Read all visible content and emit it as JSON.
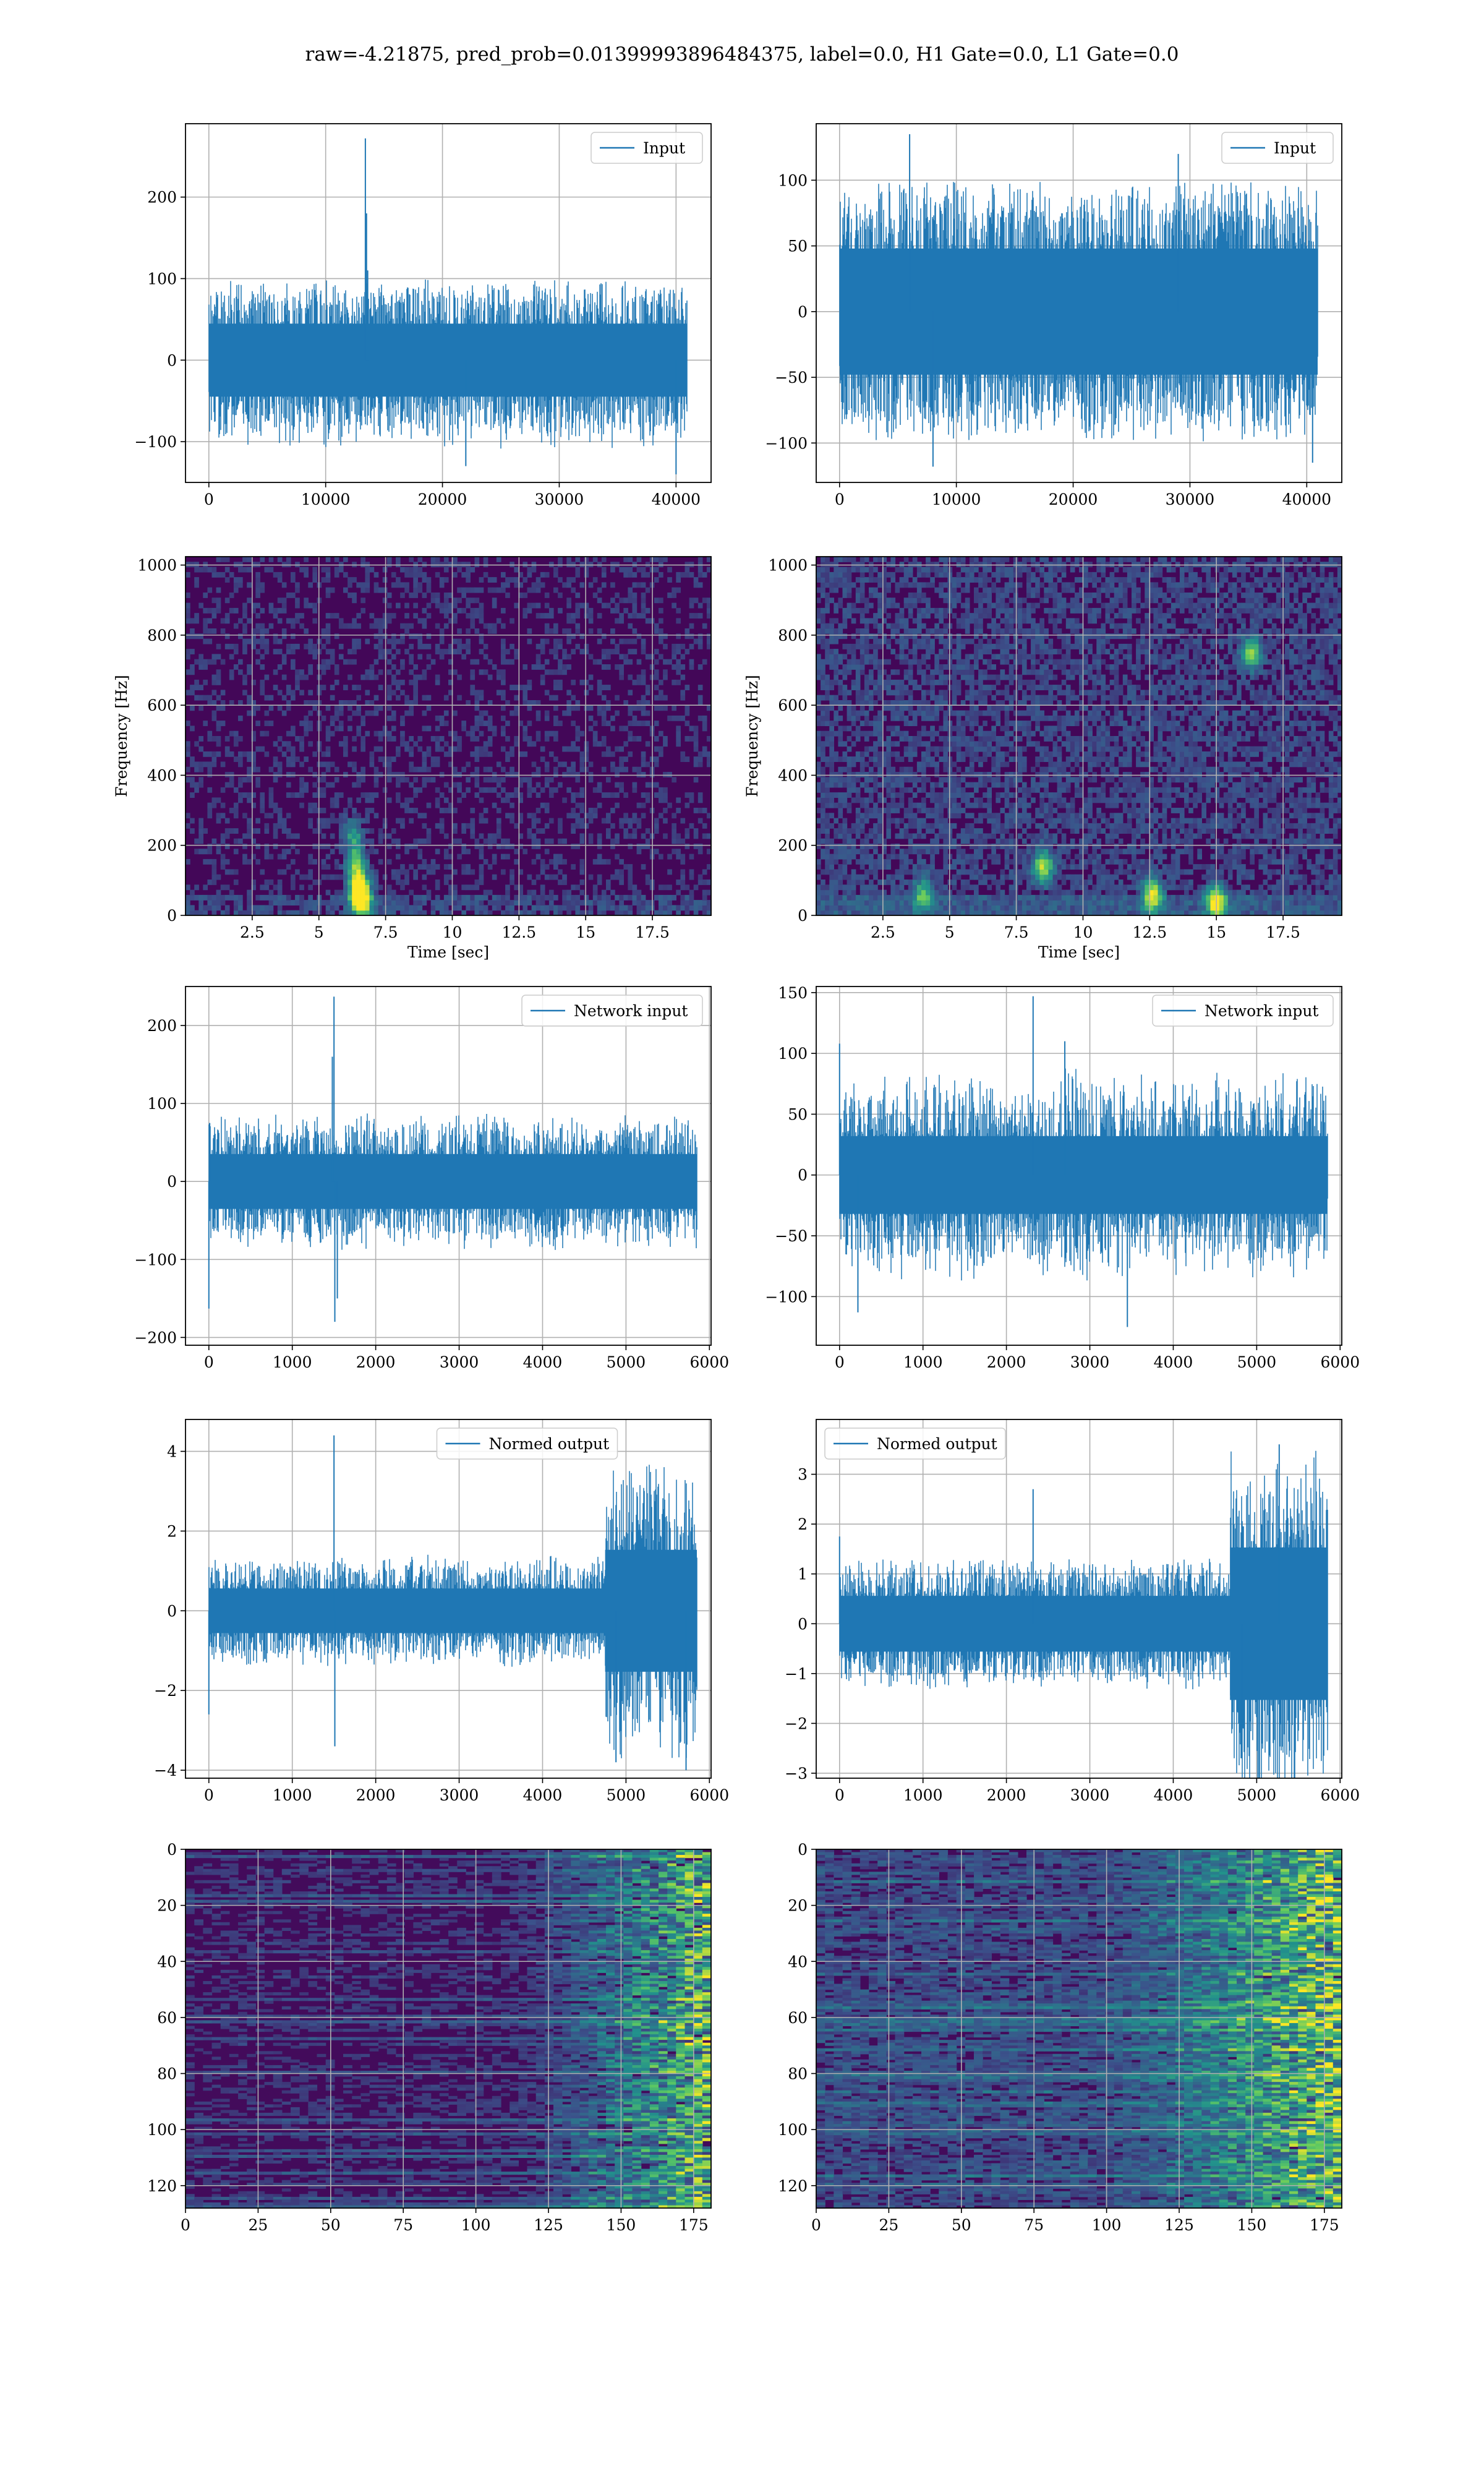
{
  "figure": {
    "suptitle": "raw=-4.21875, pred_prob=0.01399993896484375, label=0.0, H1 Gate=0.0, L1 Gate=0.0"
  },
  "chart_data": [
    {
      "id": "input-h1",
      "type": "line",
      "legend": "Input",
      "legend_position": "upper right",
      "color": "#1f77b4",
      "grid": true,
      "xlim": [
        -2000,
        43000
      ],
      "ylim": [
        -150,
        290
      ],
      "xticks": [
        0,
        10000,
        20000,
        30000,
        40000
      ],
      "yticks": [
        -100,
        0,
        100,
        200
      ],
      "n_samples": 40960,
      "envelope": [
        -100,
        90
      ],
      "noise_sigma": 28,
      "spikes": [
        [
          13400,
          272
        ],
        [
          13500,
          180
        ],
        [
          13600,
          110
        ],
        [
          22000,
          -130
        ],
        [
          40000,
          -140
        ]
      ]
    },
    {
      "id": "input-l1",
      "type": "line",
      "legend": "Input",
      "legend_position": "upper right",
      "color": "#1f77b4",
      "grid": true,
      "xlim": [
        -2000,
        43000
      ],
      "ylim": [
        -130,
        143
      ],
      "xticks": [
        0,
        10000,
        20000,
        30000,
        40000
      ],
      "yticks": [
        -100,
        -50,
        0,
        50,
        100
      ],
      "n_samples": 40960,
      "envelope": [
        -90,
        90
      ],
      "noise_sigma": 30,
      "spikes": [
        [
          6000,
          135
        ],
        [
          8000,
          -118
        ],
        [
          29000,
          120
        ],
        [
          40500,
          -115
        ]
      ]
    },
    {
      "id": "spectrogram-h1",
      "type": "heatmap",
      "colormap": "viridis",
      "grid": true,
      "xlabel": "Time [sec]",
      "ylabel": "Frequency [Hz]",
      "xlim": [
        0,
        19.7
      ],
      "ylim": [
        0,
        1024
      ],
      "xticks": [
        2.5,
        5.0,
        7.5,
        10.0,
        12.5,
        15.0,
        17.5
      ],
      "yticks": [
        0,
        200,
        400,
        600,
        800,
        1000
      ],
      "background_level": 0.1,
      "hotspots": [
        [
          6.5,
          80,
          1.0
        ],
        [
          6.4,
          150,
          0.6
        ],
        [
          6.6,
          40,
          0.9
        ],
        [
          6.3,
          230,
          0.4
        ]
      ]
    },
    {
      "id": "spectrogram-l1",
      "type": "heatmap",
      "colormap": "viridis",
      "grid": true,
      "xlabel": "Time [sec]",
      "ylabel": "Frequency [Hz]",
      "xlim": [
        0,
        19.7
      ],
      "ylim": [
        0,
        1024
      ],
      "xticks": [
        2.5,
        5.0,
        7.5,
        10.0,
        12.5,
        15.0,
        17.5
      ],
      "yticks": [
        0,
        200,
        400,
        600,
        800,
        1000
      ],
      "background_level": 0.16,
      "hotspots": [
        [
          15.0,
          40,
          0.9
        ],
        [
          8.5,
          140,
          0.7
        ],
        [
          12.6,
          60,
          0.8
        ],
        [
          16.3,
          750,
          0.6
        ],
        [
          4.0,
          60,
          0.5
        ]
      ]
    },
    {
      "id": "network-input-h1",
      "type": "line",
      "legend": "Network input",
      "legend_position": "upper right",
      "color": "#1f77b4",
      "grid": true,
      "xlim": [
        -280,
        6020
      ],
      "ylim": [
        -210,
        250
      ],
      "xticks": [
        0,
        1000,
        2000,
        3000,
        4000,
        5000,
        6000
      ],
      "yticks": [
        -200,
        -100,
        0,
        100,
        200
      ],
      "n_samples": 5850,
      "envelope": [
        -80,
        80
      ],
      "noise_sigma": 22,
      "spikes": [
        [
          1500,
          237
        ],
        [
          1510,
          -180
        ],
        [
          1480,
          160
        ],
        [
          1540,
          -150
        ],
        [
          0,
          -163
        ],
        [
          10,
          75
        ]
      ]
    },
    {
      "id": "network-input-l1",
      "type": "line",
      "legend": "Network input",
      "legend_position": "upper right",
      "color": "#1f77b4",
      "grid": true,
      "xlim": [
        -280,
        6020
      ],
      "ylim": [
        -140,
        155
      ],
      "xticks": [
        0,
        1000,
        2000,
        3000,
        4000,
        5000,
        6000
      ],
      "yticks": [
        -100,
        -50,
        0,
        50,
        100,
        150
      ],
      "n_samples": 5850,
      "envelope": [
        -80,
        80
      ],
      "noise_sigma": 20,
      "spikes": [
        [
          2320,
          147
        ],
        [
          0,
          108
        ],
        [
          3450,
          -125
        ],
        [
          220,
          -113
        ],
        [
          2700,
          110
        ]
      ]
    },
    {
      "id": "normed-output-h1",
      "type": "line",
      "legend": "Normed output",
      "legend_position": "upper center",
      "color": "#1f77b4",
      "grid": true,
      "xlim": [
        -280,
        6020
      ],
      "ylim": [
        -4.2,
        4.8
      ],
      "xticks": [
        0,
        1000,
        2000,
        3000,
        4000,
        5000,
        6000
      ],
      "yticks": [
        -4,
        -2,
        0,
        2,
        4
      ],
      "n_samples": 5850,
      "envelope": [
        -1.3,
        1.3
      ],
      "noise_sigma": 0.35,
      "burst_after": 4750,
      "burst_sigma": 0.9,
      "spikes": [
        [
          1500,
          4.4
        ],
        [
          1510,
          -3.4
        ],
        [
          0,
          -2.6
        ],
        [
          5720,
          -4.0
        ],
        [
          4880,
          -3.8
        ]
      ]
    },
    {
      "id": "normed-output-l1",
      "type": "line",
      "legend": "Normed output",
      "legend_position": "upper left",
      "color": "#1f77b4",
      "grid": true,
      "xlim": [
        -280,
        6020
      ],
      "ylim": [
        -3.1,
        4.1
      ],
      "xticks": [
        0,
        1000,
        2000,
        3000,
        4000,
        5000,
        6000
      ],
      "yticks": [
        -3,
        -2,
        -1,
        0,
        1,
        2,
        3
      ],
      "n_samples": 5850,
      "envelope": [
        -1.2,
        1.2
      ],
      "noise_sigma": 0.35,
      "burst_after": 4680,
      "burst_sigma": 0.9,
      "spikes": [
        [
          2320,
          2.7
        ],
        [
          5270,
          3.6
        ],
        [
          0,
          1.75
        ],
        [
          4820,
          -2.7
        ]
      ]
    },
    {
      "id": "feature-map-h1",
      "type": "heatmap",
      "colormap": "viridis",
      "grid": true,
      "xlim": [
        0,
        181
      ],
      "ylim": [
        128,
        0
      ],
      "xticks": [
        0,
        25,
        50,
        75,
        100,
        125,
        150,
        175
      ],
      "yticks": [
        0,
        20,
        40,
        60,
        80,
        100,
        120
      ],
      "rows": 128,
      "cols": 181,
      "ramp_start": 110,
      "background_level": 0.12
    },
    {
      "id": "feature-map-l1",
      "type": "heatmap",
      "colormap": "viridis",
      "grid": true,
      "xlim": [
        0,
        181
      ],
      "ylim": [
        128,
        0
      ],
      "xticks": [
        0,
        25,
        50,
        75,
        100,
        125,
        150,
        175
      ],
      "yticks": [
        0,
        20,
        40,
        60,
        80,
        100,
        120
      ],
      "rows": 128,
      "cols": 181,
      "ramp_start": 95,
      "background_level": 0.2
    }
  ]
}
